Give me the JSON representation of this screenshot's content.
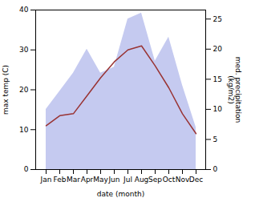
{
  "chart_data": {
    "type": "line",
    "xlabel": "date (month)",
    "ylabel": "max temp (C)",
    "y2label": "med. precipitation\n(kg/m2)",
    "categories": [
      "Jan",
      "Feb",
      "Mar",
      "Apr",
      "May",
      "Jun",
      "Jul",
      "Aug",
      "Sep",
      "Oct",
      "Nov",
      "Dec"
    ],
    "series": [
      {
        "type": "area",
        "axis": "y2",
        "color": "#c5caf0",
        "values": [
          10,
          13,
          16,
          20,
          16,
          17,
          25,
          26,
          18,
          22,
          14,
          7
        ]
      },
      {
        "type": "line",
        "color": "#993333",
        "values": [
          11,
          13.5,
          14,
          18.5,
          23,
          27,
          30,
          31,
          26,
          20.5,
          14,
          9
        ]
      }
    ],
    "ylim": [
      0,
      40
    ],
    "yticks": [
      0,
      10,
      20,
      30,
      40
    ],
    "y2lim": [
      0,
      26.5
    ],
    "y2ticks": [
      0,
      5,
      10,
      15,
      20,
      25
    ]
  }
}
